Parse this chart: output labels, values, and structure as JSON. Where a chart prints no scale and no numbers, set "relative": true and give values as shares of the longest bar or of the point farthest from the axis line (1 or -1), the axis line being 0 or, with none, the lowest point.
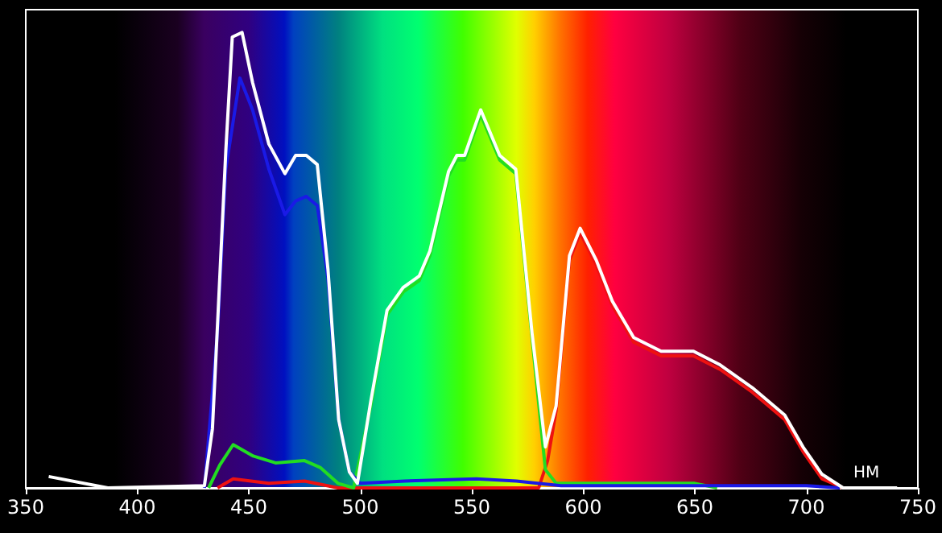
{
  "chart_data": {
    "type": "line",
    "relative": true,
    "xlabel": "НМ",
    "xlim": [
      350,
      750
    ],
    "xticks": [
      350,
      400,
      450,
      500,
      550,
      600,
      650,
      700,
      750
    ],
    "grid": false,
    "marker": "none",
    "line_style": "solid",
    "series": [
      {
        "color": "#ffffff",
        "x": [
          360.3,
          386.8,
          430.1,
          433.7,
          436.1,
          439.7,
          442.6,
          447,
          451.7,
          459,
          466.2,
          471,
          475.8,
          480.7,
          485.5,
          490.3,
          495.1,
          498.7,
          504.7,
          512,
          519.2,
          526.4,
          531.2,
          539.6,
          543.3,
          546.8,
          554,
          562.5,
          569.7,
          577,
          583,
          587.8,
          593.8,
          598.6,
          605.8,
          613,
          622.6,
          634.9,
          649.4,
          661.4,
          675.8,
          690.3,
          698.5,
          707,
          716.5,
          740.7
        ],
        "values": [
          0.025,
          0,
          0.005,
          0.13,
          0.37,
          0.74,
          0.99,
          1,
          0.89,
          0.755,
          0.69,
          0.73,
          0.73,
          0.71,
          0.48,
          0.15,
          0.035,
          0.01,
          0.19,
          0.39,
          0.44,
          0.465,
          0.52,
          0.695,
          0.73,
          0.73,
          0.83,
          0.73,
          0.7,
          0.34,
          0.09,
          0.18,
          0.51,
          0.57,
          0.5,
          0.41,
          0.33,
          0.3,
          0.3,
          0.27,
          0.22,
          0.16,
          0.09,
          0.03,
          0,
          0
        ]
      },
      {
        "color": "#1a1ae6",
        "x": [
          430.1,
          436.1,
          439.7,
          446,
          451.7,
          459,
          466.2,
          471,
          475.8,
          480.7,
          485.5,
          490.3,
          495.1,
          500,
          520,
          552,
          570,
          590,
          650,
          700,
          715
        ],
        "values": [
          0,
          0.35,
          0.7,
          0.9,
          0.83,
          0.7,
          0.6,
          0.63,
          0.64,
          0.62,
          0.46,
          0.15,
          0.035,
          0.01,
          0.015,
          0.02,
          0.015,
          0.005,
          0.005,
          0.005,
          0
        ]
      },
      {
        "color": "#22dd22",
        "x": [
          432,
          437,
          443,
          452,
          462,
          475,
          482,
          490,
          497,
          504.7,
          512,
          519.2,
          526.4,
          531.2,
          539.6,
          543.3,
          546.8,
          554,
          562.5,
          569.7,
          577,
          583,
          587.8,
          600,
          650,
          660
        ],
        "values": [
          0,
          0.05,
          0.095,
          0.07,
          0.055,
          0.06,
          0.045,
          0.01,
          0,
          0.18,
          0.38,
          0.43,
          0.455,
          0.51,
          0.685,
          0.72,
          0.72,
          0.82,
          0.72,
          0.69,
          0.33,
          0.04,
          0.01,
          0.01,
          0.01,
          0
        ]
      },
      {
        "color": "#ee1111",
        "x": [
          436,
          443,
          459,
          475,
          490,
          580,
          584,
          587.8,
          593.8,
          598.6,
          605.8,
          613,
          622.6,
          634.9,
          649.4,
          661.4,
          675.8,
          690.3,
          698.5,
          707,
          716.5
        ],
        "values": [
          0,
          0.02,
          0.01,
          0.015,
          0,
          0,
          0.06,
          0.17,
          0.5,
          0.56,
          0.49,
          0.4,
          0.32,
          0.29,
          0.29,
          0.26,
          0.21,
          0.15,
          0.08,
          0.02,
          0
        ]
      }
    ]
  }
}
